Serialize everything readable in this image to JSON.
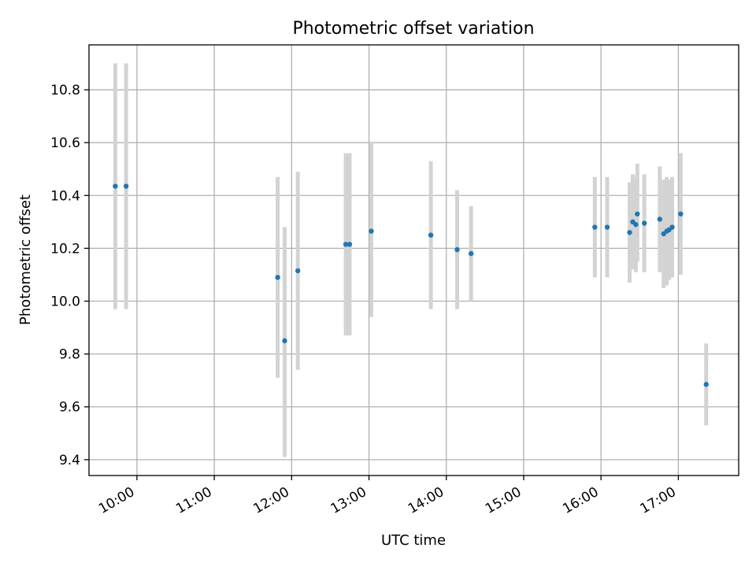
{
  "chart_data": {
    "type": "scatter",
    "title": "Photometric offset variation",
    "xlabel": "UTC time",
    "ylabel": "Photometric offset",
    "x_unit": "hour-of-day (UTC)",
    "xlim": [
      9.38,
      17.78
    ],
    "ylim": [
      9.34,
      10.97
    ],
    "xticks": [
      {
        "value": 10,
        "label": "10:00"
      },
      {
        "value": 11,
        "label": "11:00"
      },
      {
        "value": 12,
        "label": "12:00"
      },
      {
        "value": 13,
        "label": "13:00"
      },
      {
        "value": 14,
        "label": "14:00"
      },
      {
        "value": 15,
        "label": "15:00"
      },
      {
        "value": 16,
        "label": "16:00"
      },
      {
        "value": 17,
        "label": "17:00"
      }
    ],
    "yticks": [
      {
        "value": 9.4,
        "label": "9.4"
      },
      {
        "value": 9.6,
        "label": "9.6"
      },
      {
        "value": 9.8,
        "label": "9.8"
      },
      {
        "value": 10.0,
        "label": "10.0"
      },
      {
        "value": 10.2,
        "label": "10.2"
      },
      {
        "value": 10.4,
        "label": "10.4"
      },
      {
        "value": 10.6,
        "label": "10.6"
      },
      {
        "value": 10.8,
        "label": "10.8"
      }
    ],
    "grid": true,
    "colors": {
      "point": "#1f77b4",
      "errorbar": "#d3d3d3",
      "grid": "#b0b0b0"
    },
    "points": [
      {
        "time": "09:43",
        "x": 9.72,
        "y": 10.435,
        "err_low": 9.97,
        "err_high": 10.9
      },
      {
        "time": "09:52",
        "x": 9.86,
        "y": 10.435,
        "err_low": 9.97,
        "err_high": 10.9
      },
      {
        "time": "11:49",
        "x": 11.82,
        "y": 10.09,
        "err_low": 9.71,
        "err_high": 10.47
      },
      {
        "time": "11:55",
        "x": 11.91,
        "y": 9.85,
        "err_low": 9.41,
        "err_high": 10.28
      },
      {
        "time": "12:05",
        "x": 12.08,
        "y": 10.115,
        "err_low": 9.74,
        "err_high": 10.49
      },
      {
        "time": "12:42",
        "x": 12.7,
        "y": 10.215,
        "err_low": 9.87,
        "err_high": 10.56
      },
      {
        "time": "12:45",
        "x": 12.75,
        "y": 10.215,
        "err_low": 9.87,
        "err_high": 10.56
      },
      {
        "time": "13:02",
        "x": 13.03,
        "y": 10.265,
        "err_low": 9.94,
        "err_high": 10.6
      },
      {
        "time": "13:48",
        "x": 13.8,
        "y": 10.25,
        "err_low": 9.97,
        "err_high": 10.53
      },
      {
        "time": "14:08",
        "x": 14.14,
        "y": 10.195,
        "err_low": 9.97,
        "err_high": 10.42
      },
      {
        "time": "14:19",
        "x": 14.32,
        "y": 10.18,
        "err_low": 10.0,
        "err_high": 10.36
      },
      {
        "time": "15:55",
        "x": 15.92,
        "y": 10.28,
        "err_low": 10.09,
        "err_high": 10.47
      },
      {
        "time": "16:05",
        "x": 16.08,
        "y": 10.28,
        "err_low": 10.09,
        "err_high": 10.47
      },
      {
        "time": "16:22",
        "x": 16.37,
        "y": 10.26,
        "err_low": 10.07,
        "err_high": 10.45
      },
      {
        "time": "16:25",
        "x": 16.41,
        "y": 10.3,
        "err_low": 10.12,
        "err_high": 10.48
      },
      {
        "time": "16:27",
        "x": 16.45,
        "y": 10.29,
        "err_low": 10.11,
        "err_high": 10.47
      },
      {
        "time": "16:28",
        "x": 16.47,
        "y": 10.33,
        "err_low": 10.15,
        "err_high": 10.52
      },
      {
        "time": "16:34",
        "x": 16.56,
        "y": 10.295,
        "err_low": 10.11,
        "err_high": 10.48
      },
      {
        "time": "16:46",
        "x": 16.76,
        "y": 10.31,
        "err_low": 10.11,
        "err_high": 10.51
      },
      {
        "time": "16:49",
        "x": 16.81,
        "y": 10.255,
        "err_low": 10.05,
        "err_high": 10.46
      },
      {
        "time": "16:51",
        "x": 16.85,
        "y": 10.265,
        "err_low": 10.06,
        "err_high": 10.47
      },
      {
        "time": "16:53",
        "x": 16.88,
        "y": 10.27,
        "err_low": 10.08,
        "err_high": 10.46
      },
      {
        "time": "16:55",
        "x": 16.92,
        "y": 10.28,
        "err_low": 10.09,
        "err_high": 10.47
      },
      {
        "time": "17:02",
        "x": 17.03,
        "y": 10.33,
        "err_low": 10.1,
        "err_high": 10.56
      },
      {
        "time": "17:22",
        "x": 17.36,
        "y": 9.685,
        "err_low": 9.53,
        "err_high": 9.84
      }
    ]
  }
}
